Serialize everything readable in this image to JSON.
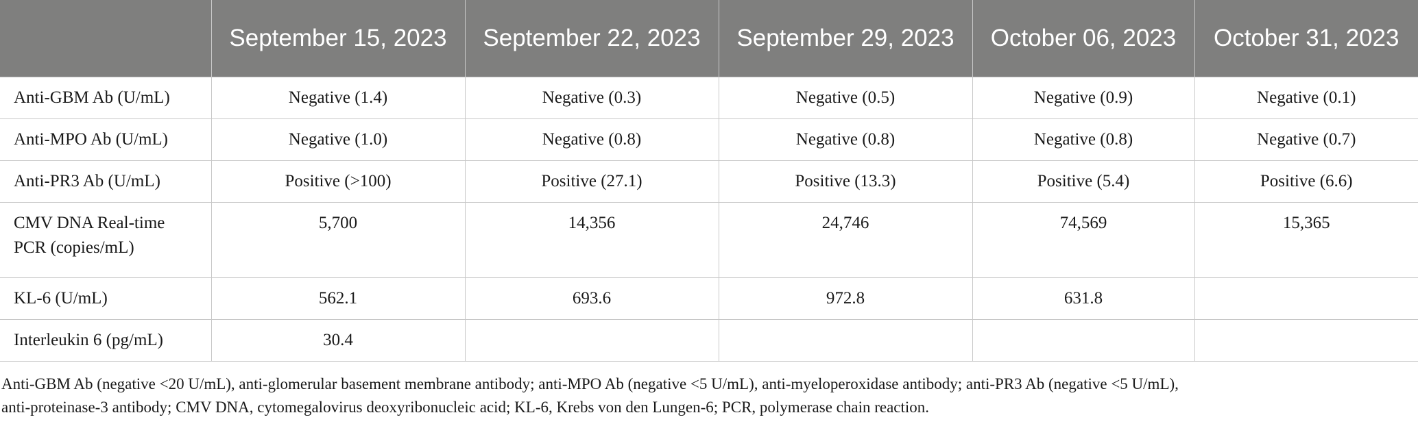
{
  "table": {
    "headers": [
      "",
      "September 15, 2023",
      "September 22, 2023",
      "September 29, 2023",
      "October 06, 2023",
      "October 31, 2023"
    ],
    "rows": [
      {
        "label": "Anti-GBM Ab (U/mL)",
        "values": [
          "Negative (1.4)",
          "Negative (0.3)",
          "Negative (0.5)",
          "Negative (0.9)",
          "Negative (0.1)"
        ]
      },
      {
        "label": "Anti-MPO Ab (U/mL)",
        "values": [
          "Negative (1.0)",
          "Negative (0.8)",
          "Negative (0.8)",
          "Negative (0.8)",
          "Negative (0.7)"
        ]
      },
      {
        "label": "Anti-PR3 Ab (U/mL)",
        "values": [
          "Positive (>100)",
          "Positive (27.1)",
          "Positive (13.3)",
          "Positive (5.4)",
          "Positive (6.6)"
        ]
      },
      {
        "label": "CMV DNA Real-time PCR (copies/mL)",
        "values": [
          "5,700",
          "14,356",
          "24,746",
          "74,569",
          "15,365"
        ]
      },
      {
        "label": "KL-6 (U/mL)",
        "values": [
          "562.1",
          "693.6",
          "972.8",
          "631.8",
          ""
        ]
      },
      {
        "label": "Interleukin 6 (pg/mL)",
        "values": [
          "30.4",
          "",
          "",
          "",
          ""
        ]
      }
    ]
  },
  "footnote": {
    "line1": "Anti-GBM Ab (negative <20 U/mL), anti-glomerular basement membrane antibody; anti-MPO Ab (negative <5 U/mL), anti-myeloperoxidase antibody; anti-PR3 Ab (negative <5 U/mL),",
    "line2": "anti-proteinase-3 antibody; CMV DNA, cytomegalovirus deoxyribonucleic acid; KL-6, Krebs von den Lungen-6; PCR, polymerase chain reaction."
  }
}
